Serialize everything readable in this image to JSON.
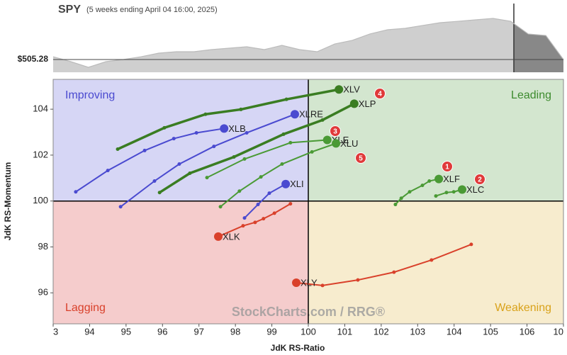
{
  "chart_data": [
    {
      "type": "area",
      "title": "SPY",
      "subtitle": "(5 weeks ending April 04 16:00, 2025)",
      "values": [
        510.3,
        501.5,
        491.4,
        501.5,
        505.3,
        510.3,
        516.7,
        519.2,
        519.2,
        523.0,
        525.5,
        528.1,
        523.0,
        530.6,
        523.0,
        519.2,
        533.1,
        539.5,
        550.9,
        558.5,
        561.0,
        566.1,
        571.1,
        573.6,
        576.2,
        578.7,
        573.6,
        550.9,
        548.3,
        505.3
      ],
      "color": "#cfcfcf",
      "highlight_color": "#888888",
      "ylim": [
        482.5,
        605.3
      ],
      "yticks": [
        {
          "value": 505.28,
          "label": "$505.28"
        }
      ]
    },
    {
      "type": "rrg",
      "xlabel": "JdK RS-Ratio",
      "ylabel": "JdK RS-Momentum",
      "xlim": [
        93,
        107
      ],
      "ylim": [
        94.65,
        105.3
      ],
      "center": 100,
      "xticks": [
        {
          "value": 93,
          "label": "3"
        },
        94,
        95,
        96,
        97,
        98,
        99,
        100,
        101,
        102,
        103,
        104,
        105,
        106,
        {
          "value": 107,
          "label": "10"
        }
      ],
      "yticks": [
        96,
        98,
        100,
        102,
        104
      ],
      "quadrants": [
        {
          "name": "Improving",
          "color": "#d6d6f5",
          "text_color": "#4a4ad0"
        },
        {
          "name": "Leading",
          "color": "#d3e6cf",
          "text_color": "#3d8b2e"
        },
        {
          "name": "Lagging",
          "color": "#f5cccc",
          "text_color": "#d9412b"
        },
        {
          "name": "Weakening",
          "color": "#f7ecce",
          "text_color": "#d9a21a"
        }
      ],
      "watermark": "StockCharts.com / RRG®",
      "annotations": [
        "1",
        "2",
        "3",
        "4",
        "5"
      ],
      "series": [
        {
          "name": "XLV",
          "color": "#3a7d22",
          "x": [
            94.77,
            96.05,
            97.18,
            98.15,
            99.4,
            100.84
          ],
          "y": [
            102.26,
            103.19,
            103.78,
            103.99,
            104.43,
            104.86
          ]
        },
        {
          "name": "XLP",
          "color": "#3a7d22",
          "x": [
            95.92,
            96.75,
            97.96,
            99.32,
            100.39,
            101.26
          ],
          "y": [
            100.37,
            101.21,
            101.92,
            102.91,
            103.53,
            104.24
          ]
        },
        {
          "name": "XLE",
          "color": "#4a9a35",
          "x": [
            97.22,
            98.25,
            99.51,
            100.52
          ],
          "y": [
            101.02,
            101.83,
            102.54,
            102.66
          ]
        },
        {
          "name": "XLU",
          "color": "#4a9a35",
          "x": [
            97.59,
            98.11,
            98.7,
            99.28,
            100.1,
            100.76
          ],
          "y": [
            99.75,
            100.43,
            101.05,
            101.61,
            102.14,
            102.51
          ]
        },
        {
          "name": "XLF",
          "color": "#4a9a35",
          "x": [
            102.39,
            102.55,
            102.78,
            103.13,
            103.32,
            103.58
          ],
          "y": [
            99.85,
            100.12,
            100.4,
            100.68,
            100.87,
            100.96
          ]
        },
        {
          "name": "XLC",
          "color": "#4a9a35",
          "x": [
            103.5,
            103.79,
            103.99,
            104.22
          ],
          "y": [
            100.22,
            100.37,
            100.4,
            100.5
          ]
        },
        {
          "name": "XLB",
          "color": "#4a4ad0",
          "x": [
            93.62,
            94.5,
            95.51,
            96.31,
            96.93,
            97.69
          ],
          "y": [
            100.4,
            101.33,
            102.2,
            102.72,
            102.97,
            103.16
          ]
        },
        {
          "name": "XLRE",
          "color": "#4a4ad0",
          "x": [
            94.85,
            95.78,
            96.46,
            97.41,
            98.31,
            99.63
          ],
          "y": [
            99.75,
            100.87,
            101.61,
            102.38,
            102.97,
            103.78
          ]
        },
        {
          "name": "XLI",
          "color": "#4a4ad0",
          "x": [
            98.25,
            98.62,
            98.93,
            99.38
          ],
          "y": [
            99.26,
            99.85,
            100.34,
            100.74
          ]
        },
        {
          "name": "XLK",
          "color": "#d9412b",
          "x": [
            99.51,
            99.07,
            98.77,
            98.54,
            98.21,
            97.53
          ],
          "y": [
            99.88,
            99.47,
            99.23,
            99.07,
            98.92,
            98.45
          ]
        },
        {
          "name": "XLY",
          "color": "#d9412b",
          "x": [
            104.47,
            103.38,
            102.35,
            101.36,
            100.39,
            99.67
          ],
          "y": [
            98.11,
            97.43,
            96.9,
            96.56,
            96.32,
            96.44
          ]
        }
      ]
    }
  ]
}
